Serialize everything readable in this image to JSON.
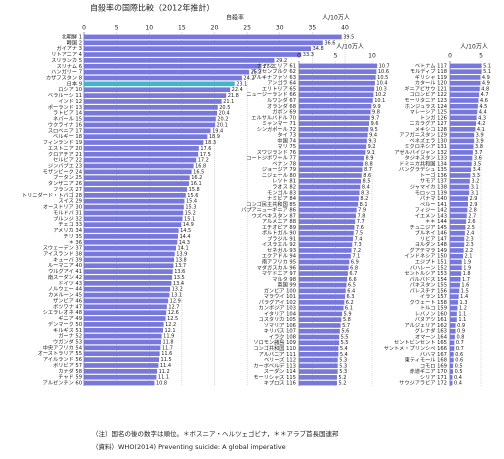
{
  "title": "自殺率の国際比較（2012年推計）",
  "notes": [
    "（注）国名の後の数字は順位。＊ボスニア・ヘルツェゴビナ，＊＊アラブ首長国連邦",
    "（資料）WHO(2014) Preventing suicide: A global imperative"
  ],
  "chart_data": [
    {
      "type": "hbar",
      "xlabel": "自殺率",
      "unit": "人/10万人",
      "xlim": [
        0,
        40
      ],
      "xticks": [
        0,
        5,
        10,
        15,
        20,
        25,
        30,
        35,
        40
      ],
      "grid": true,
      "categories": [
        "北朝鮮 1",
        "韓国 2",
        "ガイアナ 3",
        "リトアニア 4",
        "スリランカ 5",
        "スリナム 6",
        "ハンガリー 7",
        "カザフスタン 8",
        "日本 9",
        "ロシア 10",
        "ベラルーシ 11",
        "インド 12",
        "ポーランド 13",
        "ラトビア 14",
        "ネパール 15",
        "ウクライナ 16",
        "スロベニア 17",
        "ベルギー 18",
        "フィンランド 19",
        "エストニア 20",
        "クロアチア 21",
        "セルビア 22",
        "ジンバブエ 23",
        "モザンビーク 24",
        "ブータン 25",
        "タンザニア 26",
        "フランス 27",
        "トリニダード・トバゴ 28",
        "スイス 29",
        "オーストリア 30",
        "モルドバ 31",
        "ブルンジ 32",
        "チェコ 33",
        "アメリカ 34",
        "チリ 35",
        "＊ 36",
        "スウェーデン 37",
        "アイスランド 38",
        "キューバ 39",
        "ルーマニア 40",
        "ウルグアイ 41",
        "南スーダン 42",
        "ドイツ 43",
        "ノルウェー 44",
        "カメルーン 45",
        "ザンビア 46",
        "ボツワナ 47",
        "シエラレオネ 48",
        "ギニア 49",
        "デンマーク 50",
        "キルギス 51",
        "ガーナ 52",
        "ウガンダ 53",
        "中央アフリカ 54",
        "オーストラリア 55",
        "アイルランド 56",
        "ボリビア 57",
        "カナダ 58",
        "チャド 59",
        "アルゼンチン 60"
      ],
      "values": [
        39.5,
        36.6,
        34.8,
        33.3,
        29.2,
        27.2,
        25.3,
        24.2,
        23.1,
        22.4,
        21.8,
        21.1,
        20.5,
        20.4,
        20.2,
        20.1,
        19.4,
        18.9,
        18.3,
        17.6,
        17.5,
        17.2,
        16.8,
        16.5,
        16.2,
        16.1,
        15.8,
        15.6,
        15.4,
        15.3,
        15.2,
        15.1,
        14.9,
        14.5,
        14.4,
        14.3,
        14.1,
        13.9,
        13.8,
        13.7,
        13.6,
        13.5,
        13.4,
        13.2,
        13.1,
        12.9,
        12.7,
        12.6,
        12.5,
        12.2,
        12.1,
        11.9,
        11.8,
        11.7,
        11.6,
        11.5,
        11.4,
        11.2,
        11.1,
        10.8
      ],
      "colors": [
        "#7878dc",
        "#7878dc",
        "#7878dc",
        "#7878dc",
        "#7878dc",
        "#7878dc",
        "#7878dc",
        "#7878dc",
        "#3fb7c7",
        "#7878dc",
        "#7878dc",
        "#7878dc",
        "#7878dc",
        "#7878dc",
        "#7878dc",
        "#7878dc",
        "#7878dc",
        "#7878dc",
        "#7878dc",
        "#7878dc",
        "#7878dc",
        "#7878dc",
        "#7878dc",
        "#7878dc",
        "#7878dc",
        "#7878dc",
        "#7878dc",
        "#7878dc",
        "#7878dc",
        "#7878dc",
        "#7878dc",
        "#7878dc",
        "#7878dc",
        "#7878dc",
        "#7878dc",
        "#7878dc",
        "#7878dc",
        "#7878dc",
        "#7878dc",
        "#7878dc",
        "#7878dc",
        "#7878dc",
        "#7878dc",
        "#7878dc",
        "#7878dc",
        "#7878dc",
        "#7878dc",
        "#7878dc",
        "#7878dc",
        "#7878dc",
        "#7878dc",
        "#7878dc",
        "#7878dc",
        "#7878dc",
        "#7878dc",
        "#7878dc",
        "#7878dc",
        "#7878dc",
        "#7878dc",
        "#7878dc"
      ]
    },
    {
      "type": "hbar",
      "unit": "人/10万人",
      "xlim": [
        0,
        10
      ],
      "xticks": [
        0,
        5,
        10
      ],
      "grid": true,
      "color": "#7878dc",
      "categories": [
        "ナイジェリア 61",
        "ルクセンブルク 62",
        "ブルキナファソ 63",
        "アンゴラ 64",
        "エリトリア 65",
        "ニュージーランド 66",
        "ルワンダ 67",
        "オランダ 68",
        "ガボン 69",
        "エルサルバドル 70",
        "ミャンマー 71",
        "シンガポール 72",
        "タイ 73",
        "中国 74",
        "マリ 75",
        "スワジランド 76",
        "コートジボワール 77",
        "ベナン 78",
        "ジョージア 79",
        "ニジェール 80",
        "レソト 81",
        "ラオス 82",
        "モンゴル 83",
        "ナミビア 84",
        "コンゴ民主共和国 85",
        "パプアニューギニア 86",
        "ウズベキスタン 87",
        "アルメニア 88",
        "エチオピア 89",
        "ポルトガル 90",
        "ブラジル 91",
        "イスラエル 92",
        "セネガル 93",
        "エクアドル 94",
        "南アフリカ 95",
        "マダガスカル 96",
        "マケドニア 97",
        "マルタ 98",
        "英国 99",
        "ガンビア 100",
        "マラウイ 101",
        "パラグアイ 102",
        "カンボジア 103",
        "イタリア 104",
        "コスタリカ 105",
        "ソマリア 106",
        "キリバス 107",
        "イラク 108",
        "ソロモン諸島 109",
        "コンゴ共和国 110",
        "アルバニア 111",
        "ベリーズ 112",
        "カーボベルデ 113",
        "スーダン 114",
        "モーリシャス 115",
        "キプロス 116"
      ],
      "values": [
        10.7,
        10.6,
        10.5,
        10.4,
        10.3,
        10.2,
        10.1,
        9.9,
        9.8,
        9.7,
        9.6,
        9.5,
        9.4,
        9.3,
        9.2,
        9.1,
        8.9,
        8.8,
        8.7,
        8.6,
        8.5,
        8.4,
        8.3,
        8.2,
        8.1,
        7.9,
        7.8,
        7.7,
        7.6,
        7.5,
        7.4,
        7.3,
        7.2,
        7.1,
        6.9,
        6.8,
        6.7,
        6.6,
        6.5,
        6.4,
        6.3,
        6.2,
        6.1,
        5.9,
        5.8,
        5.7,
        5.6,
        5.5,
        5.5,
        5.4,
        5.4,
        5.3,
        5.3,
        5.3,
        5.2,
        5.2
      ]
    },
    {
      "type": "hbar",
      "unit": "人/10万人",
      "xlim": [
        0,
        5
      ],
      "xticks": [
        0,
        5
      ],
      "grid": true,
      "color": "#7878dc",
      "categories": [
        "ベトナム 117",
        "モルディブ 118",
        "ギリシャ 119",
        "カタール 120",
        "ギニアビサウ 121",
        "コロンビア 122",
        "モーリタニア 123",
        "ホンジュラス 124",
        "マレーシア 125",
        "トンガ 126",
        "ニカラグア 127",
        "メキシコ 128",
        "アフガニスタン 129",
        "ベネズエラ 130",
        "ミクロネシア 131",
        "アゼルバイジャン 132",
        "タジキスタン 133",
        "ドミニカ共和国 134",
        "バングラデシュ 135",
        "トーゴ 136",
        "サモア 137",
        "ジャマイカ 138",
        "モロッコ 139",
        "パナマ 140",
        "ペルー 141",
        "フィジー 142",
        "イエメン 143",
        "＊＊ 144",
        "チュニジア 145",
        "ブルネイ 146",
        "リビア 147",
        "ヨルダン 148",
        "グアテマラ 149",
        "インドネシア 150",
        "エジプト 151",
        "バハレーン 152",
        "セントルシア 153",
        "バルバドス 154",
        "パキスタン 155",
        "パレスチナ 156",
        "イラン 157",
        "クウェート 158",
        "トルコ 159",
        "レバノン 160",
        "バヌアツ 161",
        "アルジェリア 162",
        "グレナダ 163",
        "オマーン 164",
        "セントビンセント 165",
        "サントメ・プリンシペ 166",
        "バハマ 167",
        "東ティモール 168",
        "コモロ 169",
        "赤道ギニア 170",
        "シリア 171",
        "サウジアラビア 172"
      ],
      "values": [
        5.1,
        5.1,
        4.9,
        4.9,
        4.8,
        4.7,
        4.6,
        4.5,
        4.4,
        4.3,
        4.2,
        4.1,
        3.9,
        3.9,
        3.8,
        3.7,
        3.6,
        3.5,
        3.4,
        3.3,
        3.2,
        3.1,
        3.1,
        2.9,
        2.9,
        2.8,
        2.7,
        2.6,
        2.5,
        2.4,
        2.3,
        2.3,
        2.2,
        2.1,
        1.9,
        1.9,
        1.8,
        1.7,
        1.6,
        1.5,
        1.4,
        1.3,
        1.2,
        1.1,
        1.1,
        0.9,
        0.9,
        0.8,
        0.7,
        0.7,
        0.6,
        0.6,
        0.5,
        0.5,
        0.4,
        0.4
      ]
    }
  ]
}
